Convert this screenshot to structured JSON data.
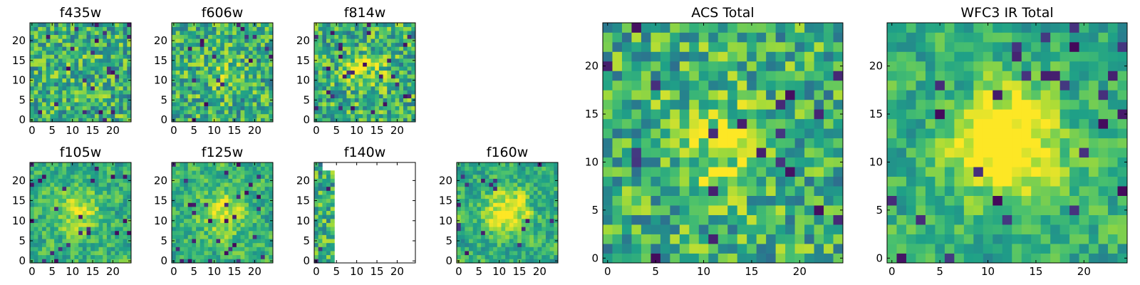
{
  "chart_data": [
    {
      "type": "heatmap",
      "title": "f435w",
      "xlim": [
        0,
        24
      ],
      "ylim": [
        0,
        24
      ],
      "xticks": [
        "0",
        "5",
        "10",
        "15",
        "20"
      ],
      "yticks": [
        "0",
        "5",
        "10",
        "15",
        "20"
      ],
      "pattern": "noise",
      "blob": 0.05,
      "coverage_max_col": null
    },
    {
      "type": "heatmap",
      "title": "f606w",
      "xlim": [
        0,
        24
      ],
      "ylim": [
        0,
        24
      ],
      "xticks": [
        "0",
        "5",
        "10",
        "15",
        "20"
      ],
      "yticks": [
        "0",
        "5",
        "10",
        "15",
        "20"
      ],
      "pattern": "noise",
      "blob": 0.1,
      "coverage_max_col": null
    },
    {
      "type": "heatmap",
      "title": "f814w",
      "xlim": [
        0,
        24
      ],
      "ylim": [
        0,
        24
      ],
      "xticks": [
        "0",
        "5",
        "10",
        "15",
        "20"
      ],
      "yticks": [
        "0",
        "5",
        "10",
        "15",
        "20"
      ],
      "pattern": "noise",
      "blob": 0.2,
      "coverage_max_col": null
    },
    {
      "type": "heatmap",
      "title": "f105w",
      "xlim": [
        0,
        24
      ],
      "ylim": [
        0,
        24
      ],
      "xticks": [
        "0",
        "5",
        "10",
        "15",
        "20"
      ],
      "yticks": [
        "0",
        "5",
        "10",
        "15",
        "20"
      ],
      "pattern": "smooth",
      "blob": 0.3,
      "coverage_max_col": null
    },
    {
      "type": "heatmap",
      "title": "f125w",
      "xlim": [
        0,
        24
      ],
      "ylim": [
        0,
        24
      ],
      "xticks": [
        "0",
        "5",
        "10",
        "15",
        "20"
      ],
      "yticks": [
        "0",
        "5",
        "10",
        "15",
        "20"
      ],
      "pattern": "smooth",
      "blob": 0.35,
      "coverage_max_col": null
    },
    {
      "type": "heatmap",
      "title": "f140w",
      "xlim": [
        0,
        24
      ],
      "ylim": [
        0,
        24
      ],
      "xticks": [
        "0",
        "5",
        "10",
        "15",
        "20"
      ],
      "yticks": [
        "0",
        "5",
        "10",
        "15",
        "20"
      ],
      "pattern": "partial",
      "blob": 0.0,
      "coverage_max_col": 4
    },
    {
      "type": "heatmap",
      "title": "f160w",
      "xlim": [
        0,
        24
      ],
      "ylim": [
        0,
        24
      ],
      "xticks": [
        "0",
        "5",
        "10",
        "15",
        "20"
      ],
      "yticks": [
        "0",
        "5",
        "10",
        "15",
        "20"
      ],
      "pattern": "smooth",
      "blob": 0.4,
      "coverage_max_col": null
    },
    {
      "type": "heatmap",
      "title": "ACS Total",
      "xlim": [
        0,
        24
      ],
      "ylim": [
        0,
        24
      ],
      "xticks": [
        "0",
        "5",
        "10",
        "15",
        "20"
      ],
      "yticks": [
        "0",
        "5",
        "10",
        "15",
        "20"
      ],
      "pattern": "noise",
      "blob": 0.25,
      "coverage_max_col": null
    },
    {
      "type": "heatmap",
      "title": "WFC3 IR Total",
      "xlim": [
        0,
        24
      ],
      "ylim": [
        0,
        24
      ],
      "xticks": [
        "0",
        "5",
        "10",
        "15",
        "20"
      ],
      "yticks": [
        "0",
        "5",
        "10",
        "15",
        "20"
      ],
      "pattern": "smooth",
      "blob": 0.55,
      "coverage_max_col": null
    }
  ],
  "colormap": "viridis",
  "colors": {
    "cmap_stops": [
      "#440154",
      "#46327e",
      "#365c8d",
      "#277f8e",
      "#1fa187",
      "#4ac16d",
      "#a0da39",
      "#fde725"
    ]
  }
}
